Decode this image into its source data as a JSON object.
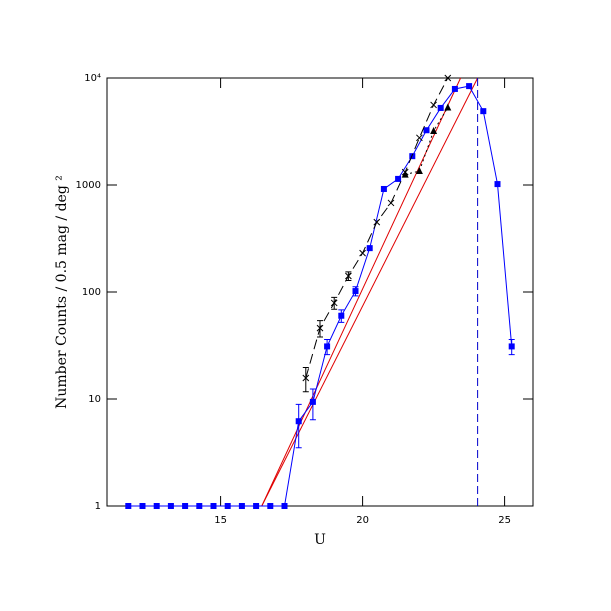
{
  "chart_data": {
    "type": "line",
    "xlabel": "U",
    "ylabel": "Number Counts / 0.5 mag / deg ²",
    "xlim": [
      11,
      26
    ],
    "ylim": [
      1,
      10000
    ],
    "log_y": true,
    "xticks": [
      15,
      20,
      25
    ],
    "yticks": [
      1,
      10,
      100,
      1000,
      {
        "value": 10000,
        "label": "10⁴"
      }
    ],
    "series": [
      {
        "marker": "square",
        "color": "#0000ff",
        "line": "solid",
        "x": [
          11.75,
          12.25,
          12.75,
          13.25,
          13.75,
          14.25,
          14.75,
          15.25,
          15.75,
          16.25,
          16.75,
          17.25,
          17.75,
          18.25,
          18.75,
          19.25,
          19.75,
          20.25,
          20.75,
          21.25,
          21.75,
          22.25,
          22.75,
          23.25,
          23.75,
          24.25,
          24.75,
          25.25
        ],
        "values": [
          1,
          1,
          1,
          1,
          1,
          1,
          1,
          1,
          1,
          1,
          1,
          1,
          6.2,
          9.4,
          31,
          60,
          102,
          257,
          918,
          1140,
          1860,
          3250,
          5250,
          7900,
          8400,
          4900,
          1020,
          31
        ],
        "errors": [
          null,
          null,
          null,
          null,
          null,
          null,
          null,
          null,
          null,
          null,
          null,
          null,
          2.7,
          3,
          5,
          8,
          10,
          null,
          null,
          null,
          null,
          null,
          null,
          null,
          null,
          null,
          null,
          5
        ]
      },
      {
        "marker": "cross",
        "color": "#000000",
        "line": "dashed",
        "x": [
          18.0,
          18.5,
          19.0,
          19.5,
          20.0,
          20.5,
          21.0,
          21.5,
          22.0,
          22.5,
          23.0
        ],
        "values": [
          15.7,
          46,
          79,
          141,
          231,
          450,
          680,
          1320,
          2760,
          5600,
          10000
        ],
        "errors": [
          4,
          8,
          10,
          13,
          null,
          null,
          null,
          null,
          null,
          null,
          null
        ]
      },
      {
        "marker": "triangle",
        "color": "#000000",
        "line": "dotted",
        "x": [
          21.5,
          22.0,
          22.5,
          23.0
        ],
        "values": [
          1250,
          1350,
          3200,
          5300
        ]
      }
    ],
    "fits": [
      {
        "color": "#e00000",
        "x": [
          16.45,
          23.45
        ],
        "values": [
          1,
          10000
        ]
      },
      {
        "color": "#e00000",
        "x": [
          16.45,
          24.05
        ],
        "values": [
          1,
          10000
        ]
      }
    ],
    "vlines": [
      {
        "x": 24.05,
        "color": "#0000cc"
      }
    ]
  }
}
